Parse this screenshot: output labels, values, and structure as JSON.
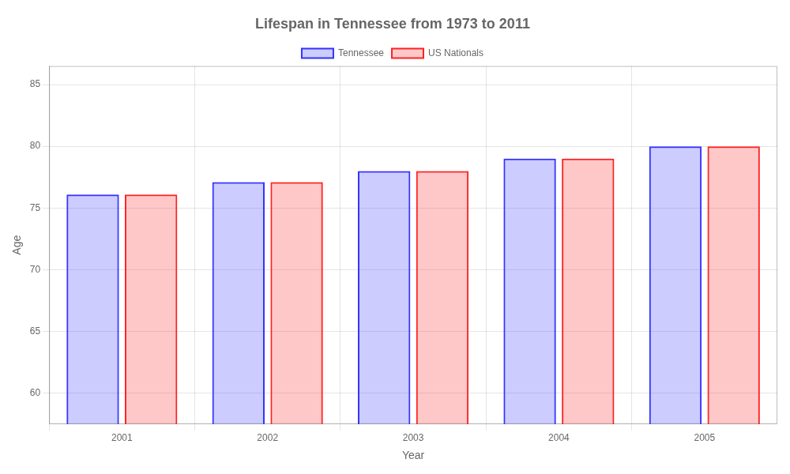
{
  "chart_data": {
    "type": "bar",
    "title": "Lifespan in Tennessee from 1973 to 2011",
    "x_label": "Year",
    "y_label": "Age",
    "categories": [
      "2001",
      "2002",
      "2003",
      "2004",
      "2005"
    ],
    "series": [
      {
        "name": "Tennessee",
        "color": "#3333ff",
        "values": [
          76.1,
          77.1,
          78.0,
          79.0,
          80.0
        ]
      },
      {
        "name": "US Nationals",
        "color": "#ff2222",
        "values": [
          76.1,
          77.1,
          78.0,
          79.0,
          80.0
        ]
      }
    ],
    "ylim": [
      57.5,
      86.5
    ],
    "yticks": [
      60,
      65,
      70,
      75,
      80,
      85
    ],
    "grid": true,
    "legend": "top"
  }
}
